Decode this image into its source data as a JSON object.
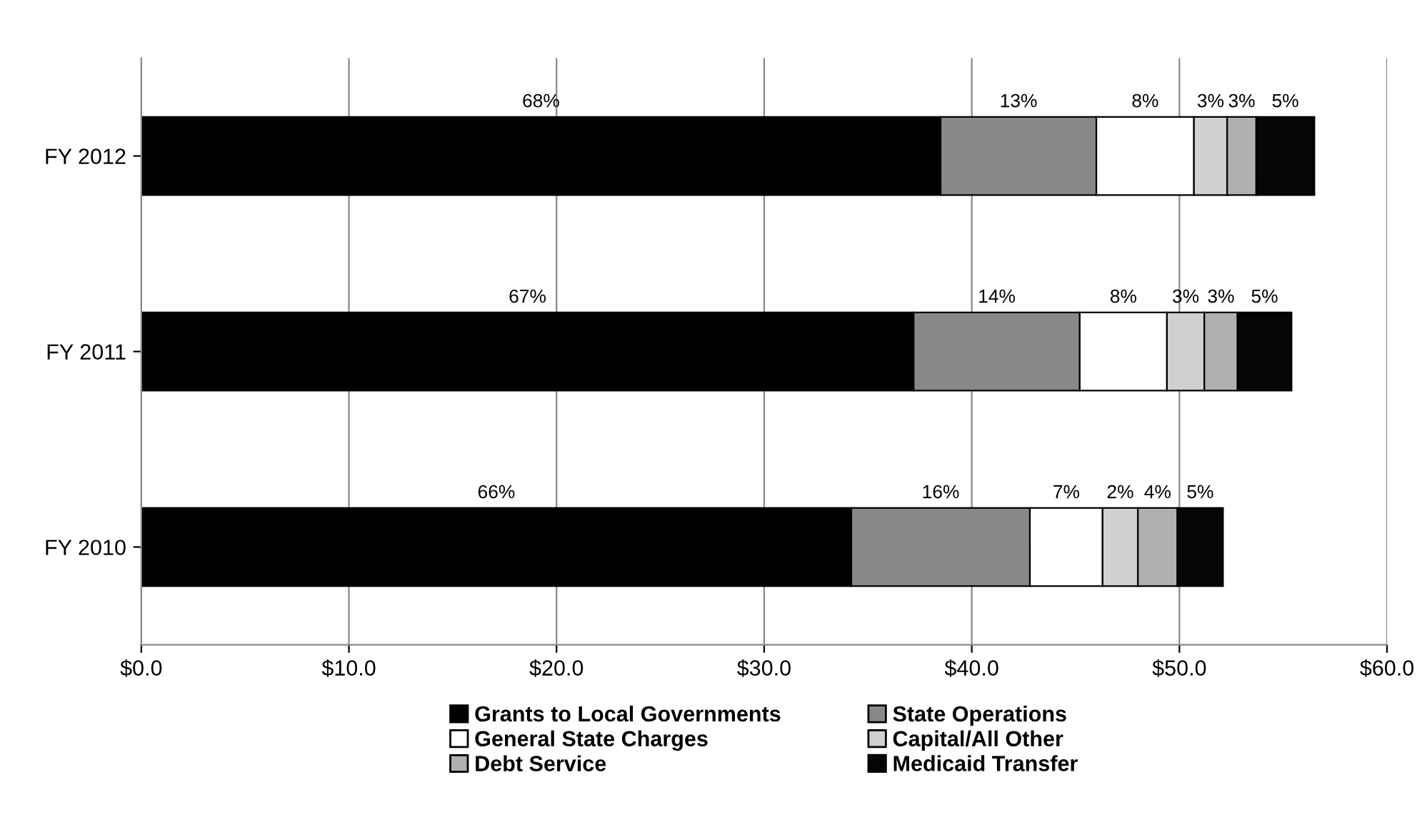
{
  "chart_data": {
    "type": "bar",
    "orientation": "horizontal",
    "stacked": true,
    "categories": [
      "FY 2012",
      "FY 2011",
      "FY 2010"
    ],
    "xlim": [
      0,
      60
    ],
    "xticks": [
      {
        "value": 0,
        "label": "$0.0"
      },
      {
        "value": 10,
        "label": "$10.0"
      },
      {
        "value": 20,
        "label": "$20.0"
      },
      {
        "value": 30,
        "label": "$30.0"
      },
      {
        "value": 40,
        "label": "$40.0"
      },
      {
        "value": 50,
        "label": "$50.0"
      },
      {
        "value": 60,
        "label": "$60.0"
      }
    ],
    "grid": "x",
    "legend": "bottom",
    "series": [
      {
        "name": "Grants to Local Governments",
        "color": "#000000",
        "values": [
          38.5,
          37.2,
          34.2
        ]
      },
      {
        "name": "State Operations",
        "color": "#888888",
        "values": [
          7.5,
          8.0,
          8.6
        ]
      },
      {
        "name": "General State Charges",
        "color": "#ffffff",
        "values": [
          4.7,
          4.2,
          3.5
        ]
      },
      {
        "name": "Capital/All Other",
        "color": "#d0d0d0",
        "values": [
          1.6,
          1.8,
          1.7
        ]
      },
      {
        "name": "Debt Service",
        "color": "#b0b0b0",
        "values": [
          1.4,
          1.6,
          1.9
        ]
      },
      {
        "name": "Medicaid Transfer",
        "color": "#050505",
        "values": [
          2.8,
          2.6,
          2.2
        ]
      }
    ],
    "annotations": [
      "68%",
      "13%",
      "8%",
      "3%",
      "3%",
      "5%",
      "67%",
      "14%",
      "8%",
      "3%",
      "3%",
      "5%",
      "66%",
      "16%",
      "7%",
      "2%",
      "4%",
      "5%"
    ]
  }
}
